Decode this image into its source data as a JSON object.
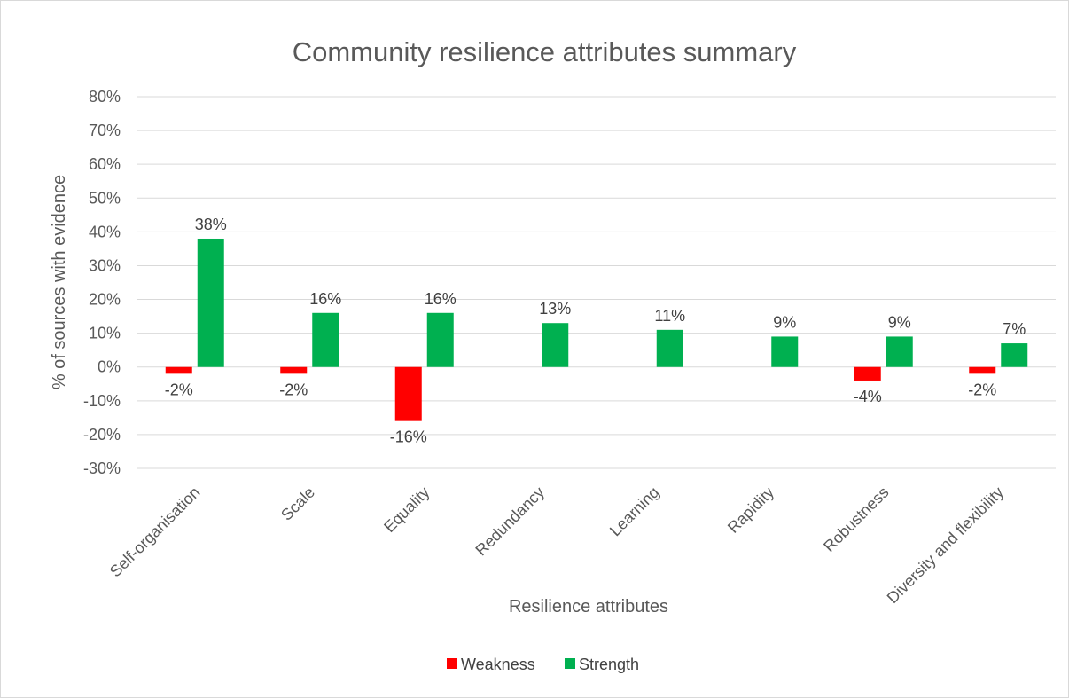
{
  "chart_data": {
    "type": "bar",
    "title": "Community resilience attributes summary",
    "xlabel": "Resilience attributes",
    "ylabel": "% of sources with evidence",
    "categories": [
      "Self-organisation",
      "Scale",
      "Equality",
      "Redundancy",
      "Learning",
      "Rapidity",
      "Robustness",
      "Diversity and flexibility"
    ],
    "series": [
      {
        "name": "Weakness",
        "color": "#ff0000",
        "values": [
          -2,
          -2,
          -16,
          null,
          null,
          null,
          -4,
          -2
        ],
        "labels": [
          "-2%",
          "-2%",
          "-16%",
          "",
          "",
          "",
          "-4%",
          "-2%"
        ]
      },
      {
        "name": "Strength",
        "color": "#00b050",
        "values": [
          38,
          16,
          16,
          13,
          11,
          9,
          9,
          7
        ],
        "labels": [
          "38%",
          "16%",
          "16%",
          "13%",
          "11%",
          "9%",
          "9%",
          "7%"
        ]
      }
    ],
    "ylim": [
      -30,
      80
    ],
    "yticks": [
      "-30%",
      "-20%",
      "-10%",
      "0%",
      "10%",
      "20%",
      "30%",
      "40%",
      "50%",
      "60%",
      "70%",
      "80%"
    ],
    "grid": true,
    "legend_position": "bottom"
  }
}
